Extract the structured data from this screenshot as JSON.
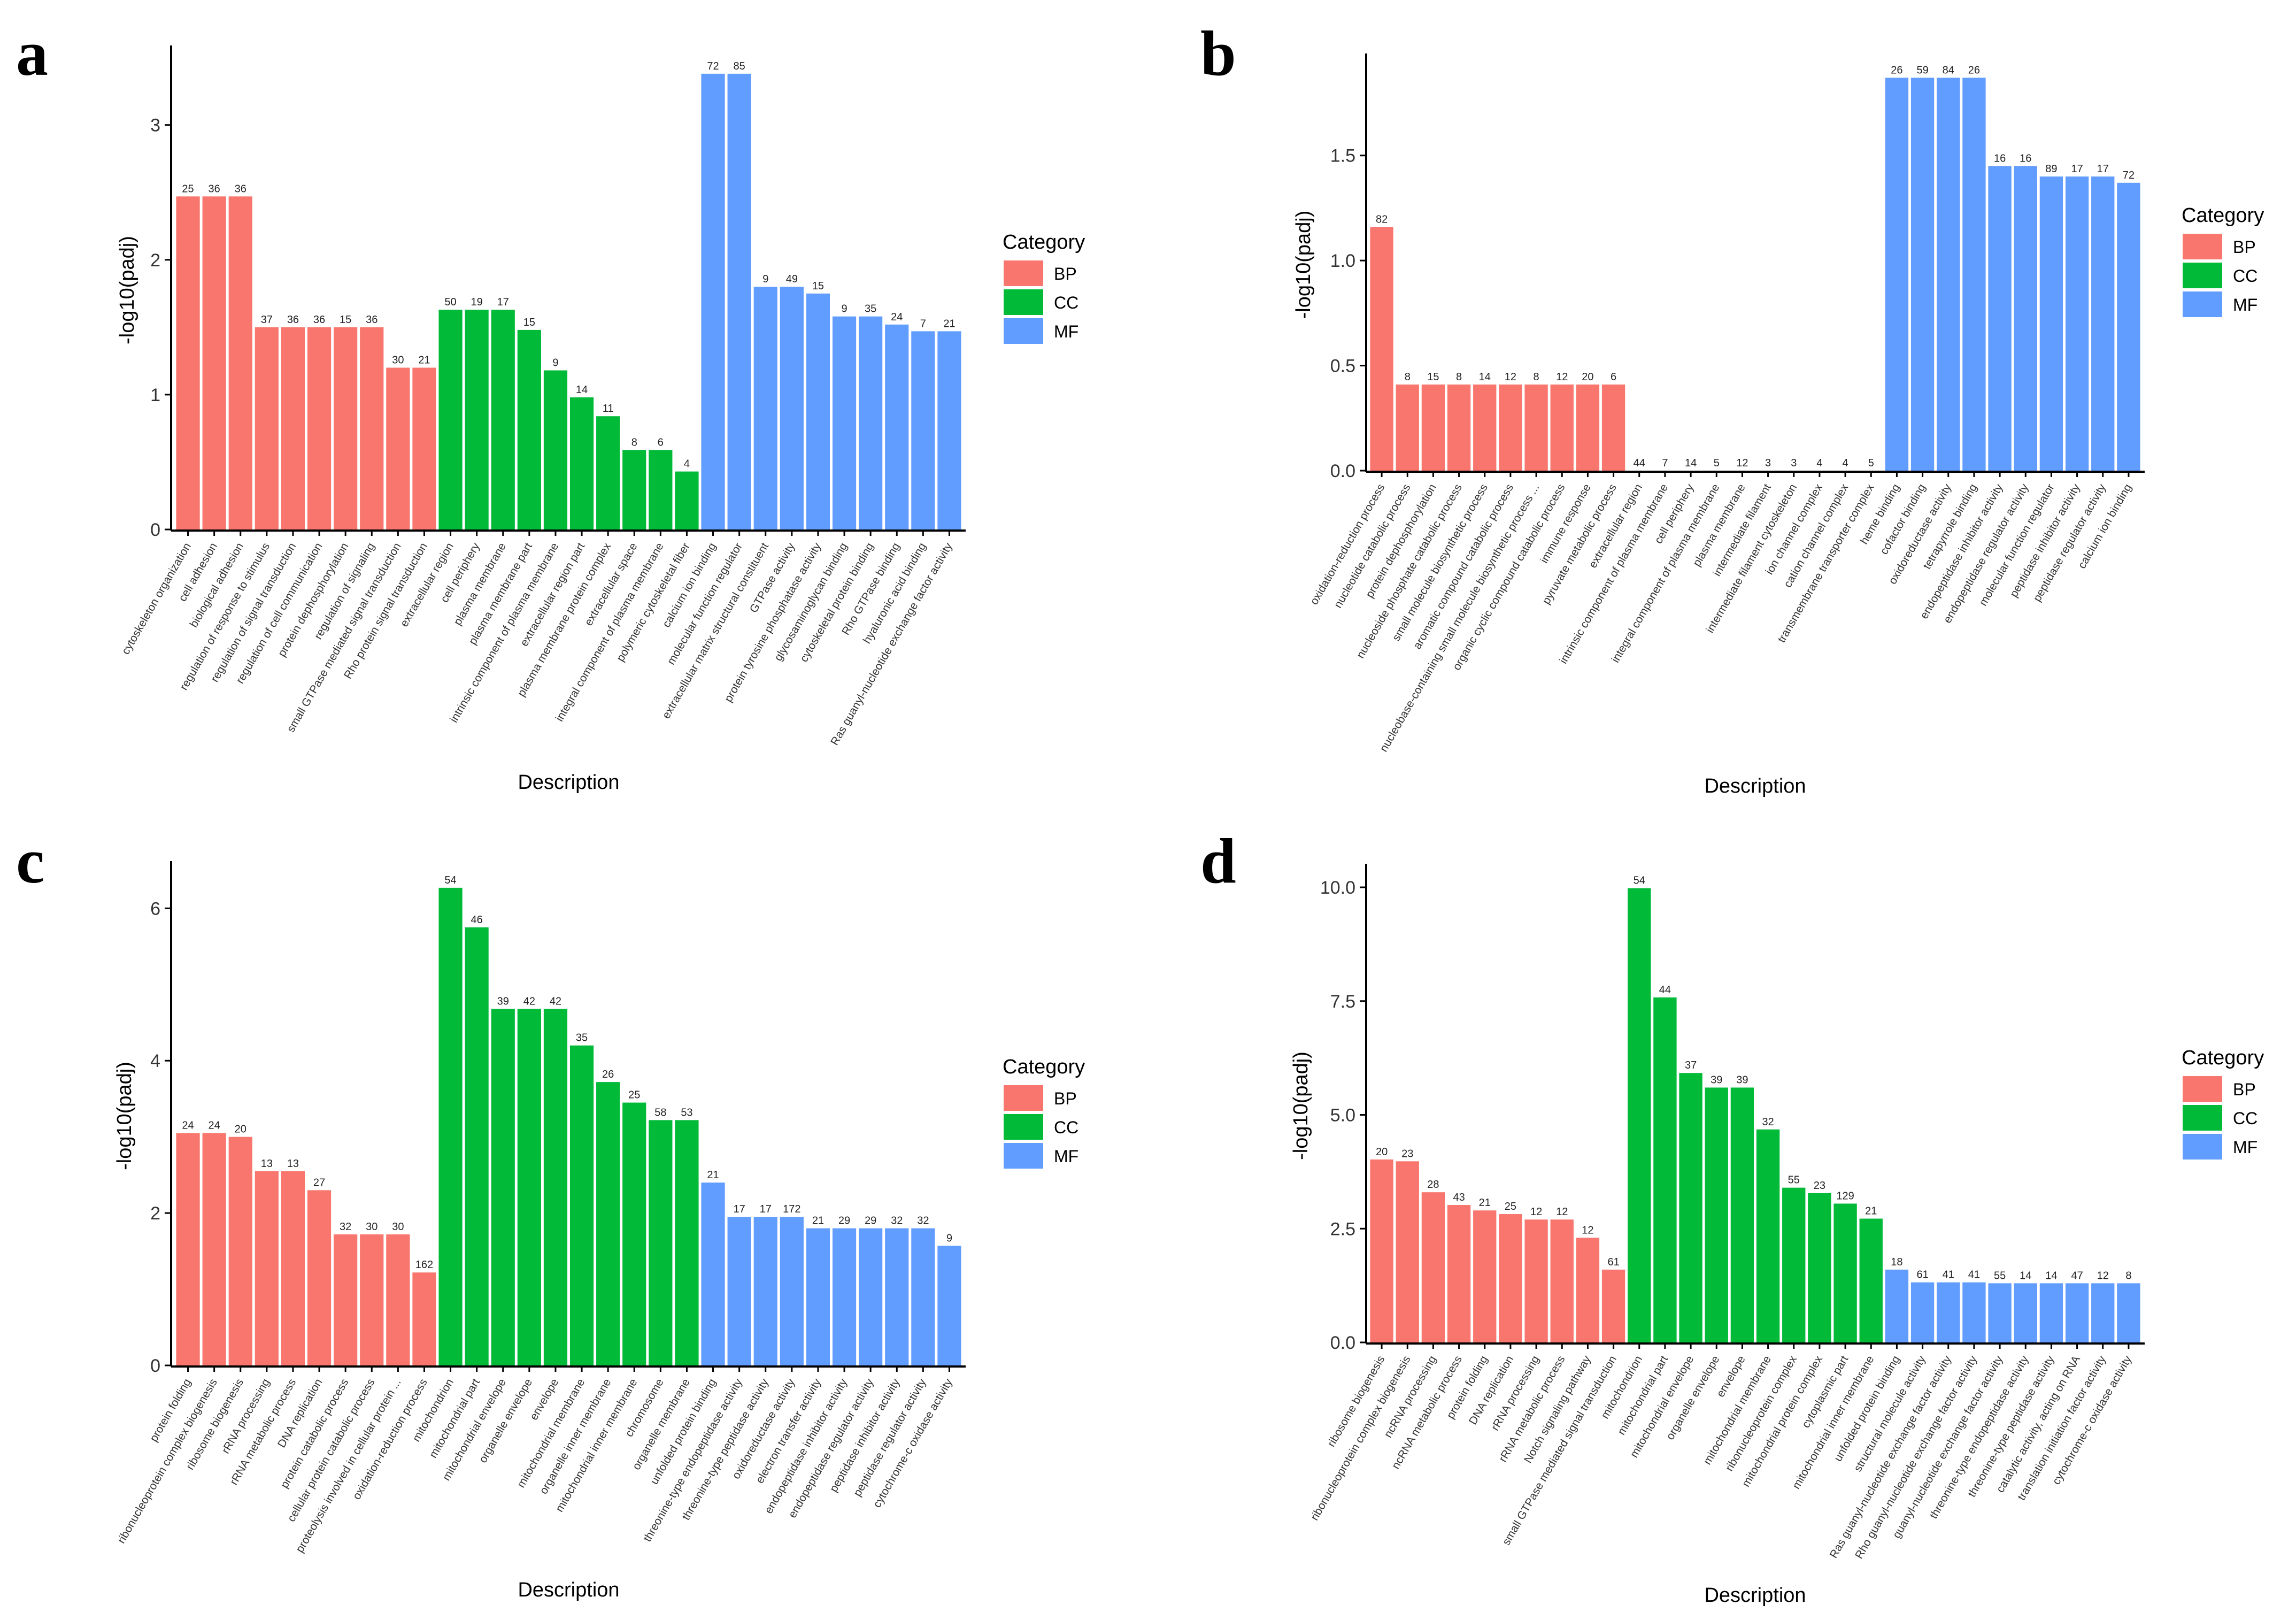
{
  "colors": {
    "BP": "#F8766D",
    "CC": "#00BA38",
    "MF": "#619CFF"
  },
  "chart_data": [
    {
      "panel": "a",
      "type": "bar",
      "xlabel": "Description",
      "ylabel": "-log10(padj)",
      "ylim": [
        0,
        3.55
      ],
      "yticks": [
        0,
        1,
        2,
        3
      ],
      "ytick_labels": [
        "0",
        "1",
        "2",
        "3"
      ],
      "legend": {
        "title": "Category",
        "items": [
          "BP",
          "CC",
          "MF"
        ]
      },
      "categories": [
        "cytoskeleton organization",
        "cell adhesion",
        "biological adhesion",
        "regulation of response to stimulus",
        "regulation of signal transduction",
        "regulation of cell communication",
        "protein dephosphorylation",
        "regulation of signaling",
        "small GTPase mediated signal transduction",
        "Rho protein signal transduction",
        "extracellular region",
        "cell periphery",
        "plasma membrane",
        "plasma membrane part",
        "intrinsic component of plasma membrane",
        "extracellular region part",
        "plasma membrane protein complex",
        "extracellular space",
        "integral component of plasma membrane",
        "polymeric cytoskeletal fiber",
        "calcium ion binding",
        "molecular function regulator",
        "extracellular matrix structural constituent",
        "GTPase activity",
        "protein tyrosine phosphatase activity",
        "glycosaminoglycan binding",
        "cytoskeletal protein binding",
        "Rho GTPase binding",
        "hyaluronic acid binding",
        "Ras guanyl-nucleotide exchange factor activity"
      ],
      "values": [
        2.47,
        2.47,
        2.47,
        1.5,
        1.5,
        1.5,
        1.5,
        1.5,
        1.2,
        1.2,
        1.63,
        1.63,
        1.63,
        1.48,
        1.18,
        0.98,
        0.84,
        0.59,
        0.59,
        0.43,
        3.38,
        3.38,
        1.8,
        1.8,
        1.75,
        1.58,
        1.58,
        1.52,
        1.47,
        1.47
      ],
      "categories_group": [
        "BP",
        "BP",
        "BP",
        "BP",
        "BP",
        "BP",
        "BP",
        "BP",
        "BP",
        "BP",
        "CC",
        "CC",
        "CC",
        "CC",
        "CC",
        "CC",
        "CC",
        "CC",
        "CC",
        "CC",
        "MF",
        "MF",
        "MF",
        "MF",
        "MF",
        "MF",
        "MF",
        "MF",
        "MF",
        "MF"
      ],
      "data_labels": [
        "25",
        "36",
        "36",
        "37",
        "36",
        "36",
        "15",
        "36",
        "30",
        "21",
        "50",
        "19",
        "17",
        "15",
        "9",
        "14",
        "11",
        "8",
        "6",
        "4",
        "72",
        "85",
        "9",
        "49",
        "15",
        "9",
        "35",
        "24",
        "7",
        "21"
      ]
    },
    {
      "panel": "b",
      "type": "bar",
      "xlabel": "Description",
      "ylabel": "-log10(padj)",
      "ylim": [
        0,
        1.96
      ],
      "yticks": [
        0,
        0.5,
        1,
        1.5
      ],
      "ytick_labels": [
        "0.0",
        "0.5",
        "1.0",
        "1.5"
      ],
      "legend": {
        "title": "Category",
        "items": [
          "BP",
          "CC",
          "MF"
        ]
      },
      "categories": [
        "oxidation-reduction process",
        "nucleotide catabolic process",
        "protein dephosphorylation",
        "nucleoside phosphate catabolic process",
        "small molecule biosynthetic process",
        "aromatic compound catabolic process",
        "nucleobase-containing small molecule biosynthetic process ...",
        "organic cyclic compound catabolic process",
        "immune response",
        "pyruvate metabolic process",
        "extracellular region",
        "intrinsic component of plasma membrane",
        "cell periphery",
        "integral component of plasma membrane",
        "plasma membrane",
        "intermediate filament",
        "intermediate filament cytoskeleton",
        "ion channel complex",
        "cation channel complex",
        "transmembrane transporter complex",
        "heme binding",
        "cofactor binding",
        "oxidoreductase activity",
        "tetrapyrrole binding",
        "endopeptidase inhibitor activity",
        "endopeptidase regulator activity",
        "molecular function regulator",
        "peptidase inhibitor activity",
        "peptidase regulator activity",
        "calcium ion binding"
      ],
      "values": [
        1.16,
        0.41,
        0.41,
        0.41,
        0.41,
        0.41,
        0.41,
        0.41,
        0.41,
        0.41,
        0,
        0,
        0,
        0,
        0,
        0,
        0,
        0,
        0,
        0,
        1.87,
        1.87,
        1.87,
        1.87,
        1.45,
        1.45,
        1.4,
        1.4,
        1.4,
        1.37
      ],
      "categories_group": [
        "BP",
        "BP",
        "BP",
        "BP",
        "BP",
        "BP",
        "BP",
        "BP",
        "BP",
        "BP",
        "CC",
        "CC",
        "CC",
        "CC",
        "CC",
        "CC",
        "CC",
        "CC",
        "CC",
        "CC",
        "MF",
        "MF",
        "MF",
        "MF",
        "MF",
        "MF",
        "MF",
        "MF",
        "MF",
        "MF"
      ],
      "data_labels": [
        "82",
        "8",
        "15",
        "8",
        "14",
        "12",
        "8",
        "12",
        "20",
        "6",
        "44",
        "7",
        "14",
        "5",
        "12",
        "3",
        "3",
        "4",
        "4",
        "5",
        "26",
        "59",
        "84",
        "26",
        "16",
        "16",
        "89",
        "17",
        "17",
        "72"
      ]
    },
    {
      "panel": "c",
      "type": "bar",
      "xlabel": "Description",
      "ylabel": "-log10(padj)",
      "ylim": [
        0,
        6.55
      ],
      "yticks": [
        0,
        2,
        4,
        6
      ],
      "ytick_labels": [
        "0",
        "2",
        "4",
        "6"
      ],
      "legend": {
        "title": "Category",
        "items": [
          "BP",
          "CC",
          "MF"
        ]
      },
      "categories": [
        "protein folding",
        "ribonucleoprotein complex biogenesis",
        "ribosome biogenesis",
        "rRNA processing",
        "rRNA metabolic process",
        "DNA replication",
        "protein catabolic process",
        "cellular protein catabolic process",
        "proteolysis involved in cellular protein ...",
        "oxidation-reduction process",
        "mitochondrion",
        "mitochondrial part",
        "mitochondrial envelope",
        "organelle envelope",
        "envelope",
        "mitochondrial membrane",
        "organelle inner membrane",
        "mitochondrial inner membrane",
        "chromosome",
        "organelle membrane",
        "unfolded protein binding",
        "threonine-type endopeptidase activity",
        "threonine-type peptidase activity",
        "oxidoreductase activity",
        "electron transfer activity",
        "endopeptidase inhibitor activity",
        "endopeptidase regulator activity",
        "peptidase inhibitor activity",
        "peptidase regulator activity",
        "cytochrome-c oxidase activity"
      ],
      "values": [
        3.05,
        3.05,
        3.0,
        2.55,
        2.55,
        2.3,
        1.72,
        1.72,
        1.72,
        1.22,
        6.27,
        5.75,
        4.68,
        4.68,
        4.68,
        4.2,
        3.72,
        3.45,
        3.22,
        3.22,
        2.4,
        1.95,
        1.95,
        1.95,
        1.8,
        1.8,
        1.8,
        1.8,
        1.8,
        1.57
      ],
      "categories_group": [
        "BP",
        "BP",
        "BP",
        "BP",
        "BP",
        "BP",
        "BP",
        "BP",
        "BP",
        "BP",
        "CC",
        "CC",
        "CC",
        "CC",
        "CC",
        "CC",
        "CC",
        "CC",
        "CC",
        "CC",
        "MF",
        "MF",
        "MF",
        "MF",
        "MF",
        "MF",
        "MF",
        "MF",
        "MF",
        "MF"
      ],
      "data_labels": [
        "24",
        "24",
        "20",
        "13",
        "13",
        "27",
        "32",
        "30",
        "30",
        "162",
        "54",
        "46",
        "39",
        "42",
        "42",
        "35",
        "26",
        "25",
        "58",
        "53",
        "21",
        "17",
        "17",
        "172",
        "21",
        "29",
        "29",
        "32",
        "32",
        "9"
      ]
    },
    {
      "panel": "d",
      "type": "bar",
      "xlabel": "Description",
      "ylabel": "-log10(padj)",
      "ylim": [
        0,
        10.4
      ],
      "yticks": [
        0,
        2.5,
        5,
        7.5,
        10
      ],
      "ytick_labels": [
        "0.0",
        "2.5",
        "5.0",
        "7.5",
        "10.0"
      ],
      "legend": {
        "title": "Category",
        "items": [
          "BP",
          "CC",
          "MF"
        ]
      },
      "categories": [
        "ribosome biogenesis",
        "ribonucleoprotein complex biogenesis",
        "ncRNA processing",
        "ncRNA metabolic process",
        "protein folding",
        "DNA replication",
        "rRNA processing",
        "rRNA metabolic process",
        "Notch signaling pathway",
        "small GTPase mediated signal transduction",
        "mitochondrion",
        "mitochondrial part",
        "mitochondrial envelope",
        "organelle envelope",
        "envelope",
        "mitochondrial membrane",
        "ribonucleoprotein complex",
        "mitochondrial protein complex",
        "cytoplasmic part",
        "mitochondrial inner membrane",
        "unfolded protein binding",
        "structural molecule activity",
        "Ras guanyl-nucleotide exchange factor activity",
        "Rho guanyl-nucleotide exchange factor activity",
        "guanyl-nucleotide exchange factor activity",
        "threonine-type endopeptidase activity",
        "threonine-type peptidase activity",
        "catalytic activity, acting on RNA",
        "translation initiation factor activity",
        "cytochrome-c oxidase activity"
      ],
      "values": [
        4.02,
        3.98,
        3.3,
        3.02,
        2.9,
        2.82,
        2.7,
        2.7,
        2.3,
        1.6,
        9.98,
        7.58,
        5.92,
        5.6,
        5.6,
        4.68,
        3.4,
        3.28,
        3.05,
        2.72,
        1.6,
        1.32,
        1.32,
        1.32,
        1.3,
        1.3,
        1.3,
        1.3,
        1.3,
        1.3
      ],
      "categories_group": [
        "BP",
        "BP",
        "BP",
        "BP",
        "BP",
        "BP",
        "BP",
        "BP",
        "BP",
        "BP",
        "CC",
        "CC",
        "CC",
        "CC",
        "CC",
        "CC",
        "CC",
        "CC",
        "CC",
        "CC",
        "MF",
        "MF",
        "MF",
        "MF",
        "MF",
        "MF",
        "MF",
        "MF",
        "MF",
        "MF"
      ],
      "data_labels": [
        "20",
        "23",
        "28",
        "43",
        "21",
        "25",
        "12",
        "12",
        "12",
        "61",
        "54",
        "44",
        "37",
        "39",
        "39",
        "32",
        "55",
        "23",
        "129",
        "21",
        "18",
        "61",
        "41",
        "41",
        "55",
        "14",
        "14",
        "47",
        "12",
        "8"
      ]
    }
  ]
}
